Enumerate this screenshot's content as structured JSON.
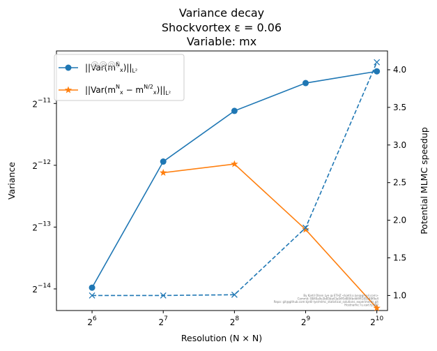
{
  "chart_data": {
    "type": "line",
    "title": [
      "Variance decay",
      "Shockvortex ε = 0.06",
      "Variable: mx"
    ],
    "xlabel": "Resolution (N × N)",
    "ylabel": "Variance",
    "y2label": "Potential MLMC speedup",
    "x": [
      64,
      128,
      256,
      512,
      1024
    ],
    "x_ticks": [
      {
        "base": "2",
        "exp": "6"
      },
      {
        "base": "2",
        "exp": "7"
      },
      {
        "base": "2",
        "exp": "8"
      },
      {
        "base": "2",
        "exp": "9"
      },
      {
        "base": "2",
        "exp": "10"
      }
    ],
    "x_scale": "log2",
    "y_scale": "log2",
    "ylim_log2": [
      -14.35,
      -10.15
    ],
    "y_ticks": [
      {
        "base": "2",
        "exp": "−14",
        "value": -14
      },
      {
        "base": "2",
        "exp": "−13",
        "value": -13
      },
      {
        "base": "2",
        "exp": "−12",
        "value": -12
      },
      {
        "base": "2",
        "exp": "−11",
        "value": -11
      }
    ],
    "y2lim": [
      0.8,
      4.25
    ],
    "y2_ticks": [
      "1.0",
      "1.5",
      "2.0",
      "2.5",
      "3.0",
      "3.5",
      "4.0"
    ],
    "series": [
      {
        "name": "||Var(m_x^N)||_{L^2}",
        "axis": "left",
        "color": "#1f77b4",
        "marker": "circle",
        "linestyle": "solid",
        "x": [
          64,
          128,
          256,
          512,
          1024
        ],
        "log2_values": [
          -13.98,
          -11.94,
          -11.12,
          -10.67,
          -10.48
        ]
      },
      {
        "name": "||Var(m_x^N − m_x^{N/2})||_{L^2}",
        "axis": "left",
        "color": "#ff7f0e",
        "marker": "star",
        "linestyle": "solid",
        "x": [
          128,
          256,
          512,
          1024
        ],
        "log2_values": [
          -12.12,
          -11.98,
          -13.04,
          -14.31
        ]
      },
      {
        "name": "Potential MLMC speedup",
        "axis": "right",
        "color": "#1f77b4",
        "marker": "x",
        "linestyle": "dashed",
        "x": [
          64,
          128,
          256,
          512,
          1024
        ],
        "values": [
          1.0,
          1.0,
          1.01,
          1.9,
          4.1
        ]
      }
    ],
    "legend": {
      "location": "upper left",
      "entries": [
        {
          "color": "#1f77b4",
          "marker": "circle",
          "pre": "||Var(m",
          "sub": "x",
          "sup": "N",
          "post": ")||",
          "norm": "L²"
        },
        {
          "color": "#ff7f0e",
          "marker": "star",
          "pre": "||Var(m",
          "sub": "x",
          "sup": "N",
          "mid": " − m",
          "sub2": "x",
          "sup2": "N/2",
          "post": ")||",
          "norm": "L²"
        }
      ],
      "overlay_text": "@@@?"
    },
    "watermark_lines": [
      "By Kjetil Olsen Lye @ ETHZ <kjetil.o.lye@gmail.com>",
      "Commit: 8840a9e3b85ba43a04f5d804bdd4f4185848f9e4",
      "Repo: git@github.com:kjetil-lye/mlmc_statistical_solutions_experiments.git",
      "Hostname: lu.ead.fy.892"
    ]
  }
}
